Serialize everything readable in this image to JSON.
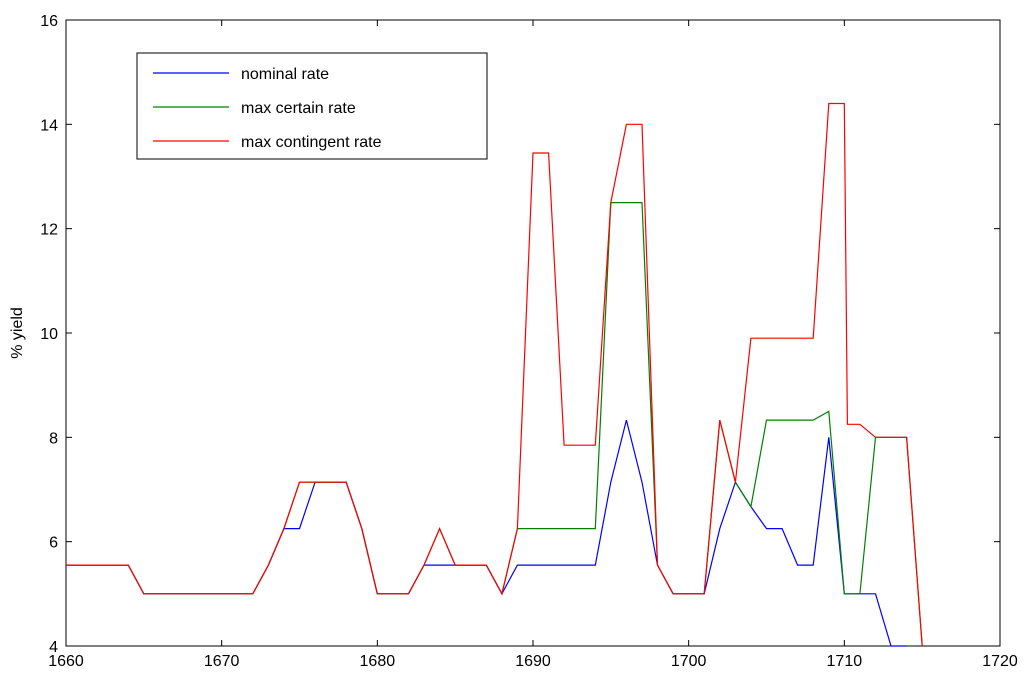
{
  "chart_data": {
    "type": "line",
    "title": "",
    "xlabel": "",
    "ylabel": "% yield",
    "xlim": [
      1660,
      1720
    ],
    "ylim": [
      4,
      16
    ],
    "xticks": [
      1660,
      1670,
      1680,
      1690,
      1700,
      1710,
      1720
    ],
    "yticks": [
      4,
      6,
      8,
      10,
      12,
      14,
      16
    ],
    "grid": false,
    "legend_position": "top-left",
    "series": [
      {
        "name": "nominal rate",
        "color": "#0000ff",
        "points": [
          [
            1660,
            5.55
          ],
          [
            1664,
            5.55
          ],
          [
            1665,
            5.0
          ],
          [
            1672,
            5.0
          ],
          [
            1673,
            5.55
          ],
          [
            1674,
            6.25
          ],
          [
            1675,
            6.25
          ],
          [
            1676,
            7.14
          ],
          [
            1678,
            7.14
          ],
          [
            1679,
            6.25
          ],
          [
            1680,
            5.0
          ],
          [
            1682,
            5.0
          ],
          [
            1683,
            5.55
          ],
          [
            1685,
            5.55
          ],
          [
            1687,
            5.55
          ],
          [
            1688,
            5.0
          ],
          [
            1689,
            5.55
          ],
          [
            1694,
            5.55
          ],
          [
            1695,
            7.14
          ],
          [
            1696,
            8.33
          ],
          [
            1697,
            7.14
          ],
          [
            1698,
            5.55
          ],
          [
            1699,
            5.0
          ],
          [
            1701,
            5.0
          ],
          [
            1702,
            6.25
          ],
          [
            1703,
            7.14
          ],
          [
            1704,
            6.67
          ],
          [
            1705,
            6.25
          ],
          [
            1706,
            6.25
          ],
          [
            1707,
            5.55
          ],
          [
            1708,
            5.55
          ],
          [
            1709,
            8.0
          ],
          [
            1710,
            5.0
          ],
          [
            1712,
            5.0
          ],
          [
            1713,
            4.0
          ],
          [
            1714,
            4.0
          ]
        ]
      },
      {
        "name": "max certain rate",
        "color": "#008000",
        "points": [
          [
            1660,
            5.55
          ],
          [
            1664,
            5.55
          ],
          [
            1665,
            5.0
          ],
          [
            1672,
            5.0
          ],
          [
            1673,
            5.55
          ],
          [
            1674,
            6.25
          ],
          [
            1675,
            7.14
          ],
          [
            1678,
            7.14
          ],
          [
            1679,
            6.25
          ],
          [
            1680,
            5.0
          ],
          [
            1682,
            5.0
          ],
          [
            1683,
            5.55
          ],
          [
            1684,
            6.25
          ],
          [
            1685,
            5.55
          ],
          [
            1687,
            5.55
          ],
          [
            1688,
            5.0
          ],
          [
            1689,
            6.25
          ],
          [
            1694,
            6.25
          ],
          [
            1695,
            12.5
          ],
          [
            1697,
            12.5
          ],
          [
            1698,
            5.55
          ],
          [
            1699,
            5.0
          ],
          [
            1701,
            5.0
          ],
          [
            1702,
            8.33
          ],
          [
            1703,
            7.14
          ],
          [
            1704,
            6.67
          ],
          [
            1705,
            8.33
          ],
          [
            1708,
            8.33
          ],
          [
            1709,
            8.5
          ],
          [
            1710,
            5.0
          ],
          [
            1711,
            5.0
          ],
          [
            1712,
            8.0
          ],
          [
            1714,
            8.0
          ],
          [
            1715,
            4.0
          ]
        ]
      },
      {
        "name": "max contingent rate",
        "color": "#ff0000",
        "points": [
          [
            1660,
            5.55
          ],
          [
            1664,
            5.55
          ],
          [
            1665,
            5.0
          ],
          [
            1672,
            5.0
          ],
          [
            1673,
            5.55
          ],
          [
            1674,
            6.25
          ],
          [
            1675,
            7.14
          ],
          [
            1678,
            7.14
          ],
          [
            1679,
            6.25
          ],
          [
            1680,
            5.0
          ],
          [
            1682,
            5.0
          ],
          [
            1683,
            5.55
          ],
          [
            1684,
            6.25
          ],
          [
            1685,
            5.55
          ],
          [
            1687,
            5.55
          ],
          [
            1688,
            5.0
          ],
          [
            1689,
            6.25
          ],
          [
            1690,
            13.45
          ],
          [
            1691,
            13.45
          ],
          [
            1692,
            7.85
          ],
          [
            1694,
            7.85
          ],
          [
            1695,
            12.5
          ],
          [
            1696,
            14.0
          ],
          [
            1697,
            14.0
          ],
          [
            1698,
            5.55
          ],
          [
            1699,
            5.0
          ],
          [
            1701,
            5.0
          ],
          [
            1702,
            8.33
          ],
          [
            1703,
            7.14
          ],
          [
            1704,
            9.9
          ],
          [
            1708,
            9.9
          ],
          [
            1709,
            14.4
          ],
          [
            1710,
            14.4
          ],
          [
            1710.2,
            8.25
          ],
          [
            1711,
            8.25
          ],
          [
            1712,
            8.0
          ],
          [
            1714,
            8.0
          ],
          [
            1715,
            4.0
          ]
        ]
      }
    ]
  }
}
